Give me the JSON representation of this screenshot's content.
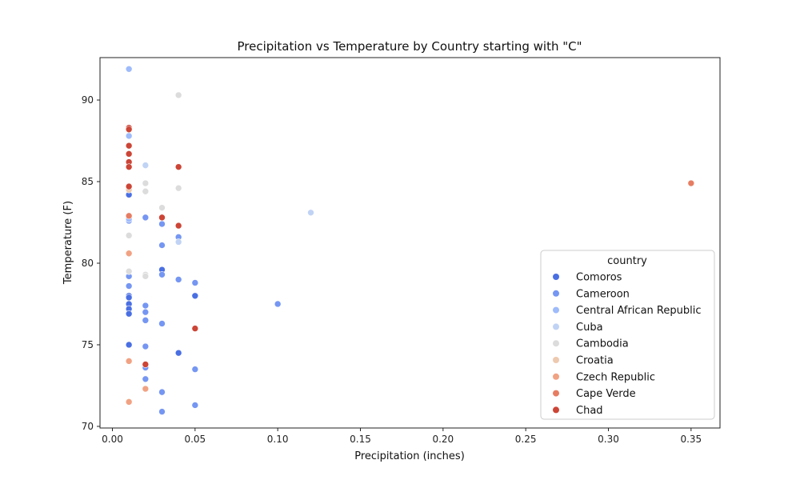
{
  "chart_data": {
    "type": "scatter",
    "title": "Precipitation vs Temperature by Country starting with \"C\"",
    "xlabel": "Precipitation (inches)",
    "ylabel": "Temperature (F)",
    "xlim": [
      -0.0075,
      0.3675
    ],
    "ylim": [
      69.9,
      92.6
    ],
    "x_ticks": [
      0.0,
      0.05,
      0.1,
      0.15,
      0.2,
      0.25,
      0.3,
      0.35
    ],
    "x_tick_labels": [
      "0.00",
      "0.05",
      "0.10",
      "0.15",
      "0.20",
      "0.25",
      "0.30",
      "0.35"
    ],
    "y_ticks": [
      70,
      75,
      80,
      85,
      90
    ],
    "y_tick_labels": [
      "70",
      "75",
      "80",
      "85",
      "90"
    ],
    "grid": false,
    "legend": {
      "title": "country",
      "placement": "lower-right"
    },
    "series": [
      {
        "name": "Comoros",
        "color": "#4a6fe3",
        "points": [
          [
            0.01,
            78.0
          ],
          [
            0.01,
            77.5
          ],
          [
            0.01,
            77.2
          ],
          [
            0.01,
            76.9
          ],
          [
            0.01,
            75.0
          ],
          [
            0.01,
            77.9
          ],
          [
            0.03,
            79.6
          ],
          [
            0.04,
            74.5
          ],
          [
            0.05,
            78.0
          ],
          [
            0.01,
            84.2
          ]
        ]
      },
      {
        "name": "Cameroon",
        "color": "#7596f2",
        "points": [
          [
            0.01,
            79.2
          ],
          [
            0.01,
            78.6
          ],
          [
            0.02,
            77.4
          ],
          [
            0.02,
            77.0
          ],
          [
            0.02,
            76.5
          ],
          [
            0.02,
            74.9
          ],
          [
            0.02,
            73.6
          ],
          [
            0.02,
            72.9
          ],
          [
            0.03,
            82.4
          ],
          [
            0.03,
            81.1
          ],
          [
            0.03,
            79.3
          ],
          [
            0.03,
            76.3
          ],
          [
            0.03,
            72.1
          ],
          [
            0.03,
            70.9
          ],
          [
            0.04,
            81.6
          ],
          [
            0.04,
            79.0
          ],
          [
            0.05,
            78.8
          ],
          [
            0.05,
            73.5
          ],
          [
            0.05,
            71.3
          ],
          [
            0.1,
            77.5
          ],
          [
            0.01,
            82.6
          ],
          [
            0.02,
            82.8
          ]
        ]
      },
      {
        "name": "Central African Republic",
        "color": "#9ebbfb",
        "points": [
          [
            0.01,
            91.9
          ],
          [
            0.01,
            87.8
          ],
          [
            0.01,
            82.7
          ]
        ]
      },
      {
        "name": "Cuba",
        "color": "#c0d3f5",
        "points": [
          [
            0.02,
            86.0
          ],
          [
            0.04,
            81.3
          ],
          [
            0.12,
            83.1
          ]
        ]
      },
      {
        "name": "Cambodia",
        "color": "#dcdcdc",
        "points": [
          [
            0.04,
            90.3
          ],
          [
            0.02,
            84.9
          ],
          [
            0.02,
            84.4
          ],
          [
            0.04,
            84.6
          ],
          [
            0.03,
            83.4
          ],
          [
            0.01,
            81.7
          ],
          [
            0.01,
            79.5
          ],
          [
            0.02,
            79.3
          ],
          [
            0.02,
            79.2
          ]
        ]
      },
      {
        "name": "Croatia",
        "color": "#edc9af",
        "points": [
          [
            0.01,
            84.5
          ]
        ]
      },
      {
        "name": "Czech Republic",
        "color": "#f1a283",
        "points": [
          [
            0.01,
            80.6
          ],
          [
            0.01,
            74.0
          ],
          [
            0.02,
            72.3
          ],
          [
            0.01,
            71.5
          ]
        ]
      },
      {
        "name": "Cape Verde",
        "color": "#e67d62",
        "points": [
          [
            0.35,
            84.9
          ],
          [
            0.01,
            82.9
          ]
        ]
      },
      {
        "name": "Chad",
        "color": "#cc4536",
        "points": [
          [
            0.01,
            88.3
          ],
          [
            0.01,
            88.2
          ],
          [
            0.01,
            87.2
          ],
          [
            0.01,
            86.7
          ],
          [
            0.01,
            86.2
          ],
          [
            0.01,
            85.9
          ],
          [
            0.01,
            84.7
          ],
          [
            0.04,
            85.9
          ],
          [
            0.03,
            82.8
          ],
          [
            0.04,
            82.3
          ],
          [
            0.05,
            76.0
          ],
          [
            0.02,
            73.8
          ]
        ]
      }
    ]
  }
}
